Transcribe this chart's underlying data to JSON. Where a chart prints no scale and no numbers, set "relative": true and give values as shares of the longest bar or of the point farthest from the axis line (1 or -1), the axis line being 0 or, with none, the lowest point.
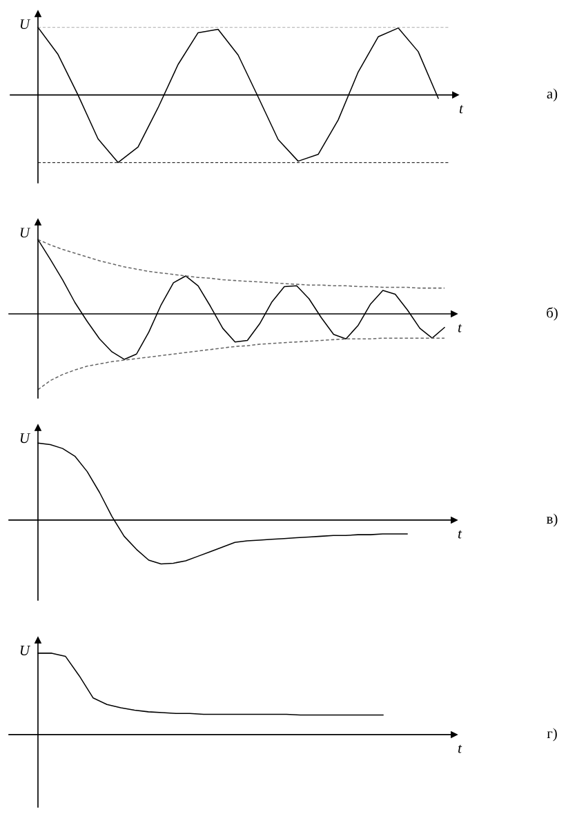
{
  "chart_data": [
    {
      "type": "line",
      "annotations": [
        "а)"
      ],
      "xlabel": "t",
      "ylabel": "U",
      "relative": true,
      "categories": [
        null,
        null,
        null,
        null,
        null,
        null,
        null,
        null,
        null,
        null,
        null,
        null,
        null,
        null,
        null,
        null,
        null,
        null,
        null,
        null,
        null
      ],
      "series": [
        {
          "color": "#000000",
          "line_style": "solid",
          "values": [
            1,
            0.6,
            0,
            -0.65,
            -1,
            -0.77,
            -0.19,
            0.45,
            0.92,
            0.97,
            0.59,
            -0.03,
            -0.66,
            -0.98,
            -0.88,
            -0.37,
            0.34,
            0.86,
            0.99,
            0.64,
            -0.05
          ]
        }
      ],
      "ref_lines": [
        {
          "axis": "y",
          "value": 1,
          "color": "#bbbbbb",
          "line_style": "dashed"
        },
        {
          "axis": "y",
          "value": -1,
          "color": "#333333",
          "line_style": "dashed"
        }
      ]
    },
    {
      "type": "line",
      "annotations": [
        "б)"
      ],
      "xlabel": "t",
      "ylabel": "U",
      "relative": true,
      "categories": [
        null,
        null,
        null,
        null,
        null,
        null,
        null,
        null,
        null,
        null,
        null,
        null,
        null,
        null,
        null,
        null,
        null,
        null,
        null,
        null,
        null,
        null,
        null,
        null,
        null,
        null,
        null,
        null,
        null,
        null,
        null,
        null,
        null,
        null
      ],
      "series": [
        {
          "color": "#000000",
          "line_style": "solid",
          "values": [
            0.98,
            0.72,
            0.45,
            0.15,
            -0.1,
            -0.33,
            -0.5,
            -0.6,
            -0.53,
            -0.24,
            0.12,
            0.41,
            0.5,
            0.37,
            0.1,
            -0.19,
            -0.37,
            -0.35,
            -0.13,
            0.16,
            0.36,
            0.37,
            0.2,
            -0.05,
            -0.27,
            -0.33,
            -0.15,
            0.13,
            0.31,
            0.26,
            0.05,
            -0.19,
            -0.32,
            -0.18
          ]
        },
        {
          "color": "#666666",
          "line_style": "dashed",
          "values": [
            0.98,
            0.91,
            0.85,
            0.8,
            0.75,
            0.7,
            0.66,
            0.62,
            0.59,
            0.56,
            0.54,
            0.52,
            0.5,
            0.48,
            0.47,
            0.45,
            0.44,
            0.43,
            0.42,
            0.41,
            0.4,
            0.39,
            0.38,
            0.38,
            0.37,
            0.37,
            0.36,
            0.36,
            0.35,
            0.35,
            0.35,
            0.34,
            0.34,
            0.34
          ]
        },
        {
          "color": "#666666",
          "line_style": "dashed",
          "values": [
            -1,
            -0.88,
            -0.8,
            -0.74,
            -0.69,
            -0.66,
            -0.63,
            -0.61,
            -0.59,
            -0.57,
            -0.55,
            -0.53,
            -0.51,
            -0.49,
            -0.47,
            -0.45,
            -0.43,
            -0.42,
            -0.4,
            -0.39,
            -0.38,
            -0.37,
            -0.36,
            -0.35,
            -0.34,
            -0.33,
            -0.33,
            -0.33,
            -0.32,
            -0.32,
            -0.32,
            -0.32,
            -0.32,
            -0.32
          ]
        }
      ]
    },
    {
      "type": "line",
      "annotations": [
        "в)"
      ],
      "xlabel": "t",
      "ylabel": "U",
      "relative": true,
      "categories": [
        null,
        null,
        null,
        null,
        null,
        null,
        null,
        null,
        null,
        null,
        null,
        null,
        null,
        null,
        null,
        null,
        null,
        null,
        null,
        null,
        null,
        null,
        null,
        null,
        null,
        null,
        null,
        null,
        null,
        null,
        null
      ],
      "series": [
        {
          "color": "#000000",
          "line_style": "solid",
          "values": [
            1,
            0.98,
            0.93,
            0.83,
            0.63,
            0.36,
            0.05,
            -0.21,
            -0.38,
            -0.52,
            -0.57,
            -0.56,
            -0.53,
            -0.47,
            -0.41,
            -0.35,
            -0.29,
            -0.27,
            -0.26,
            -0.25,
            -0.24,
            -0.23,
            -0.22,
            -0.21,
            -0.2,
            -0.2,
            -0.19,
            -0.19,
            -0.18,
            -0.18,
            -0.18
          ]
        }
      ]
    },
    {
      "type": "line",
      "annotations": [
        "г)"
      ],
      "xlabel": "t",
      "ylabel": "U",
      "relative": true,
      "categories": [
        null,
        null,
        null,
        null,
        null,
        null,
        null,
        null,
        null,
        null,
        null,
        null,
        null,
        null,
        null,
        null,
        null,
        null,
        null,
        null,
        null,
        null,
        null,
        null,
        null,
        null
      ],
      "series": [
        {
          "color": "#000000",
          "line_style": "solid",
          "values": [
            1,
            1,
            0.96,
            0.72,
            0.45,
            0.37,
            0.33,
            0.3,
            0.28,
            0.27,
            0.26,
            0.26,
            0.25,
            0.25,
            0.25,
            0.25,
            0.25,
            0.25,
            0.25,
            0.24,
            0.24,
            0.24,
            0.24,
            0.24,
            0.24,
            0.24
          ]
        }
      ]
    }
  ]
}
